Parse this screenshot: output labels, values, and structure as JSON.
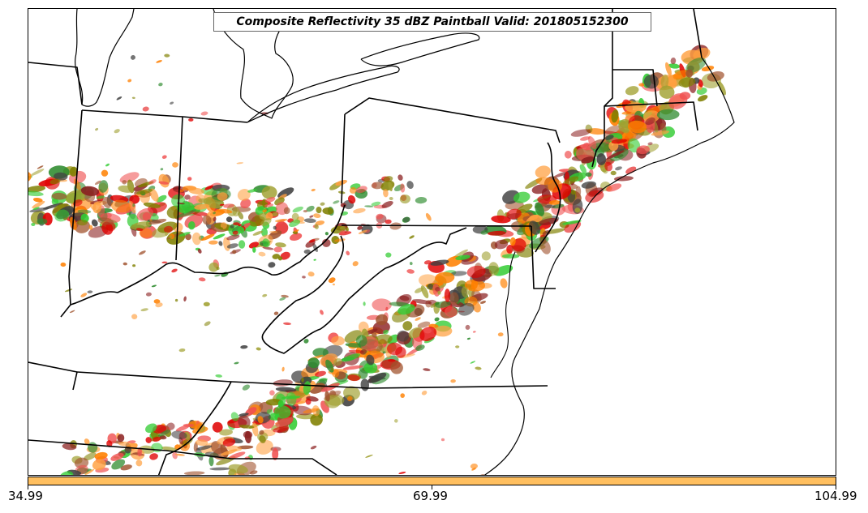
{
  "title": "Composite Reflectivity 35 dBZ Paintball Valid: 201805152300",
  "colorbar": {
    "color": "#ffbf5f",
    "ticks": [
      "34.99",
      "69.99",
      "104.99"
    ]
  },
  "palette": {
    "member_colors": [
      "#e00000",
      "#ff8000",
      "#f05050",
      "#33cc33",
      "#2e8b2e",
      "#8b2020",
      "#a0522d",
      "#a0a030",
      "#808000",
      "#404040",
      "#ffa040"
    ],
    "state_border": "#000000",
    "coast": "#000000"
  },
  "chart_data": {
    "type": "map",
    "product": "Composite Reflectivity 35 dBZ paintball",
    "valid": "201805152300",
    "colorbar_ticks": [
      34.99,
      69.99,
      104.99
    ]
  }
}
